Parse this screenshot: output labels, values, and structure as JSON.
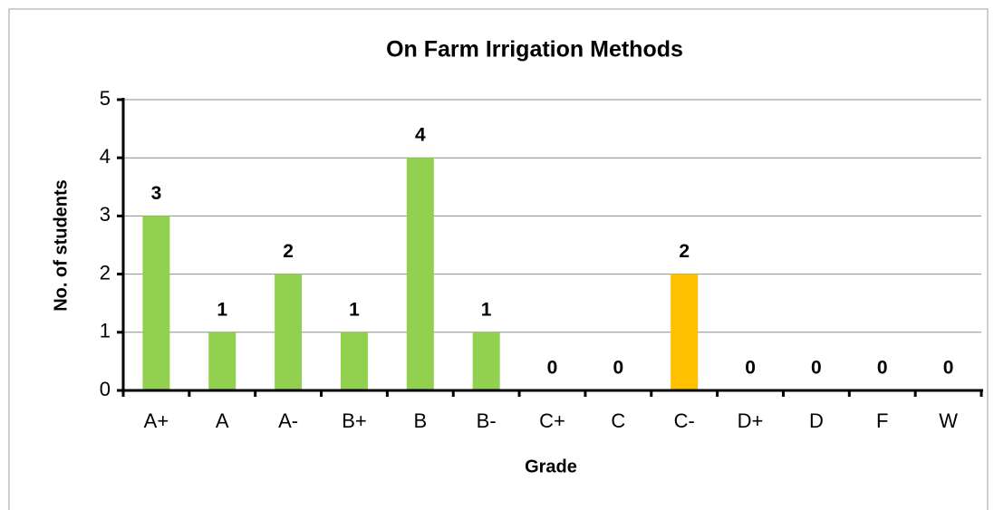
{
  "chart_data": {
    "type": "bar",
    "title": "On Farm Irrigation Methods",
    "x_label": "Grade",
    "y_label": "No. of students",
    "categories": [
      "A+",
      "A",
      "A-",
      "B+",
      "B",
      "B-",
      "C+",
      "C",
      "C-",
      "D+",
      "D",
      "F",
      "W"
    ],
    "values": [
      3,
      1,
      2,
      1,
      4,
      1,
      0,
      0,
      2,
      0,
      0,
      0,
      0
    ],
    "colors": [
      "#92d050",
      "#92d050",
      "#92d050",
      "#92d050",
      "#92d050",
      "#92d050",
      "#92d050",
      "#92d050",
      "#ffc000",
      "#92d050",
      "#92d050",
      "#92d050",
      "#92d050"
    ],
    "ylim": [
      0,
      5
    ],
    "yticks": [
      0,
      1,
      2,
      3,
      4,
      5
    ],
    "grid": true
  }
}
